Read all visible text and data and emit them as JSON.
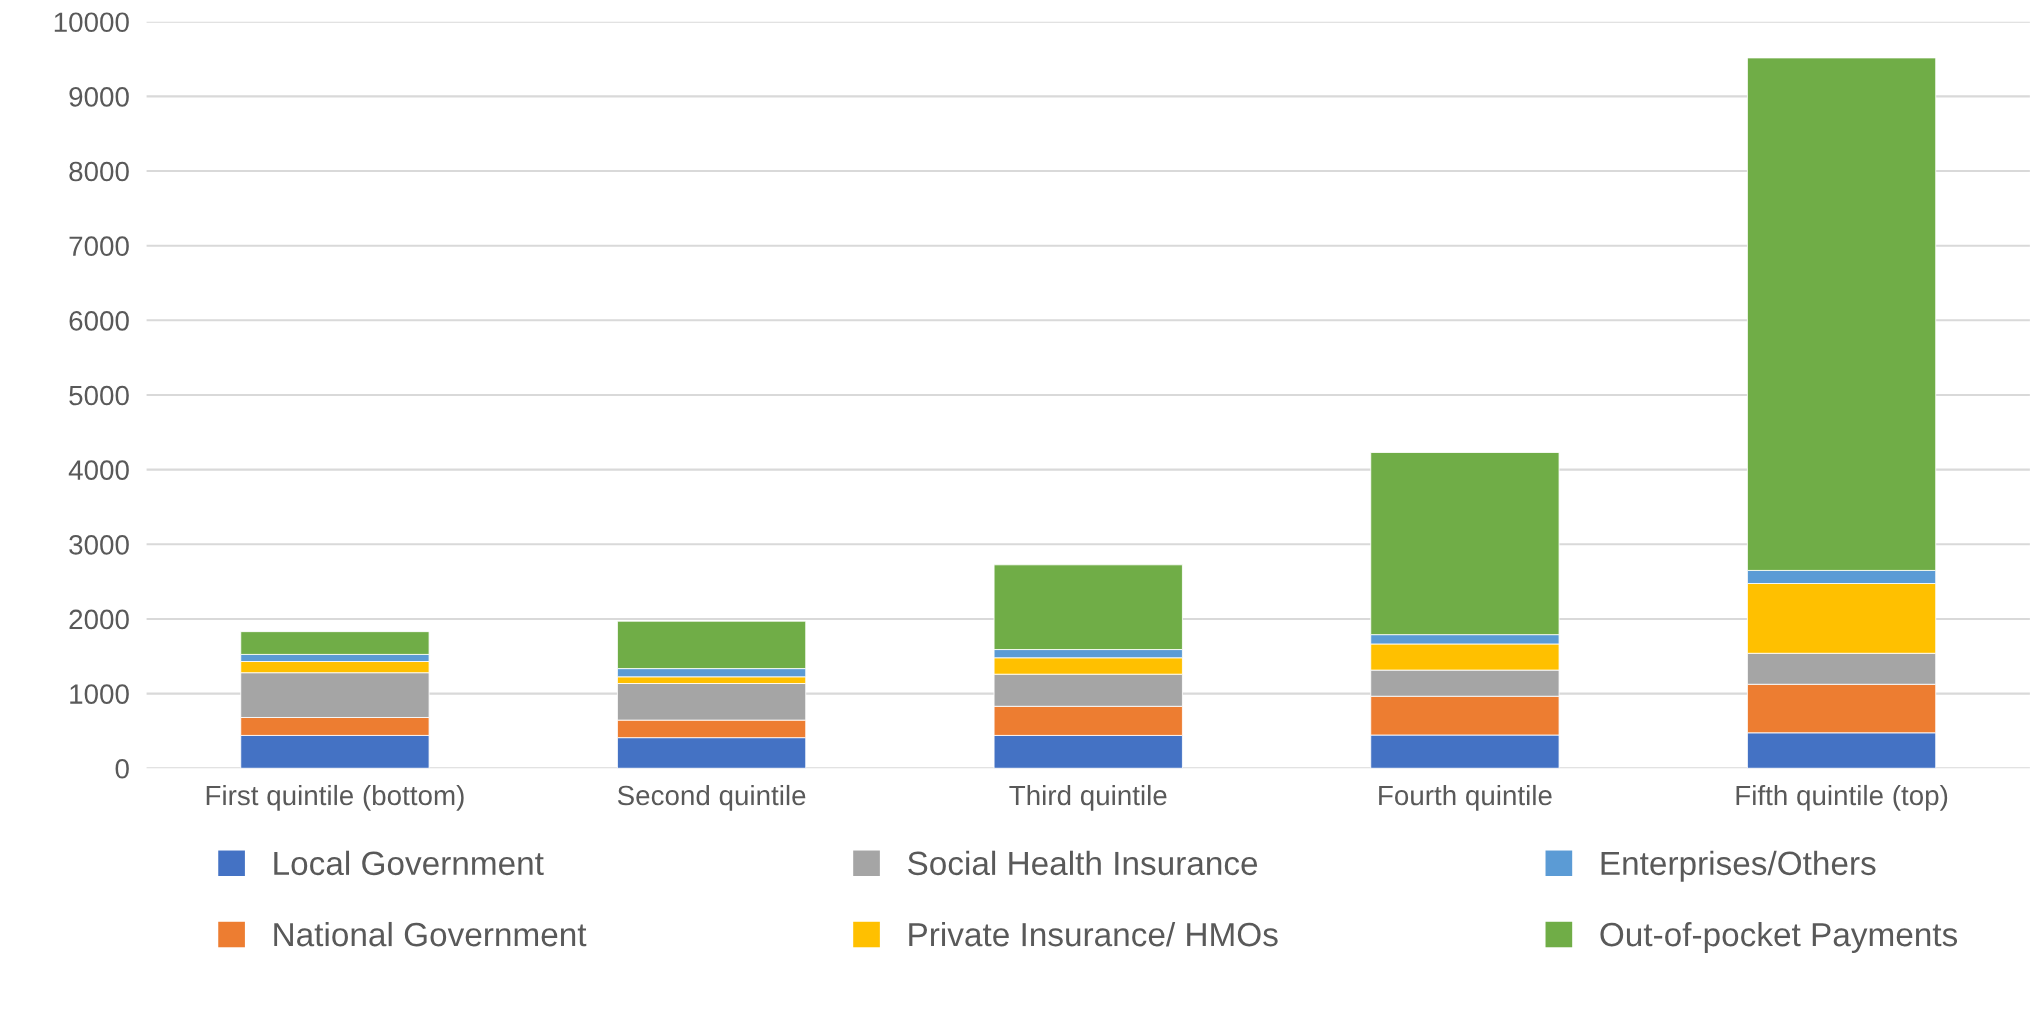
{
  "chart_data": {
    "type": "bar",
    "stacked": true,
    "categories": [
      "First quintile (bottom)",
      "Second quintile",
      "Third quintile",
      "Fourth quintile",
      "Fifth quintile (top)"
    ],
    "series": [
      {
        "name": "Local Government",
        "color": "#4472c4",
        "values": [
          440,
          410,
          440,
          445,
          475
        ]
      },
      {
        "name": "National Government",
        "color": "#ed7d31",
        "values": [
          240,
          235,
          390,
          520,
          650
        ]
      },
      {
        "name": "Social Health Insurance",
        "color": "#a5a5a5",
        "values": [
          600,
          490,
          430,
          350,
          415
        ]
      },
      {
        "name": "Private Insurance/ HMOs",
        "color": "#ffc000",
        "values": [
          150,
          90,
          220,
          350,
          935
        ]
      },
      {
        "name": "Enterprises/Others",
        "color": "#5b9bd5",
        "values": [
          95,
          110,
          110,
          125,
          175
        ]
      },
      {
        "name": "Out-of-pocket Payments",
        "color": "#70ad47",
        "values": [
          305,
          635,
          1135,
          2440,
          6865
        ]
      }
    ],
    "ylim": [
      0,
      10000
    ],
    "yticks": [
      0,
      1000,
      2000,
      3000,
      4000,
      5000,
      6000,
      7000,
      8000,
      9000,
      10000
    ],
    "grid": "y",
    "legend": "bottom"
  }
}
